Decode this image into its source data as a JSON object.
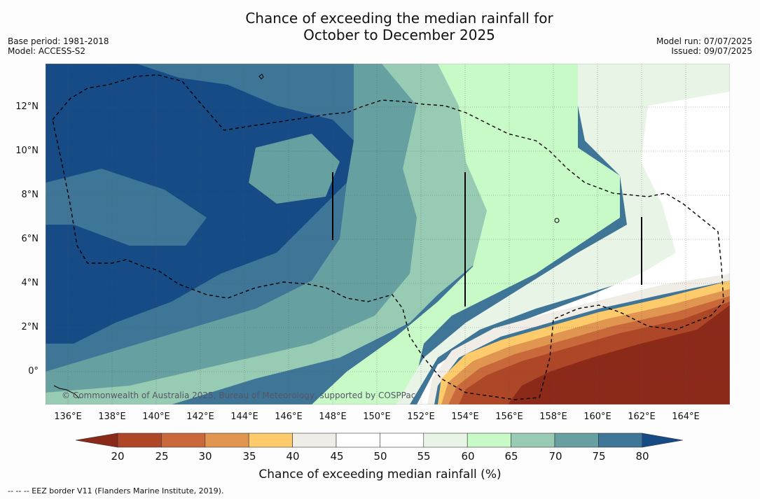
{
  "title_line1": "Chance of exceeding the median rainfall for",
  "title_line2": "October to December 2025",
  "base_period": "Base period: 1981-2018",
  "model": "Model: ACCESS-S2",
  "model_run": "Model run: 07/07/2025",
  "issued": "Issued: 09/07/2025",
  "map": {
    "lat_ticks": [
      "12°N",
      "10°N",
      "8°N",
      "6°N",
      "4°N",
      "2°N",
      "0°"
    ],
    "lon_ticks": [
      "136°E",
      "138°E",
      "140°E",
      "142°E",
      "144°E",
      "146°E",
      "148°E",
      "150°E",
      "152°E",
      "154°E",
      "156°E",
      "158°E",
      "160°E",
      "162°E",
      "164°E"
    ],
    "credit": "© Commonwealth of Australia 2025, Bureau of Meteorology, supported by COSPPac"
  },
  "colorbar": {
    "ticks": [
      "20",
      "25",
      "30",
      "35",
      "40",
      "45",
      "50",
      "55",
      "60",
      "65",
      "70",
      "75",
      "80"
    ],
    "colors": [
      "#8b2a19",
      "#ae4628",
      "#c9683a",
      "#e09550",
      "#fdcb6b",
      "#f0ece6",
      "#ffffff",
      "#ffffff",
      "#e8f5e6",
      "#c8fac8",
      "#98cbb3",
      "#67a0a0",
      "#3f7597",
      "#174b86"
    ],
    "label": "Chance of exceeding median rainfall (%)"
  },
  "footer": "--  --  -- EEZ border V11 (Flanders Marine Institute, 2019)."
}
